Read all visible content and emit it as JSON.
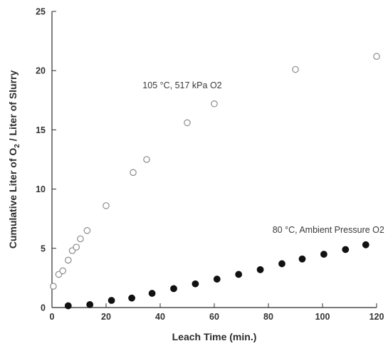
{
  "chart_data": {
    "type": "scatter",
    "title": "",
    "xlabel": "Leach Time (min.)",
    "ylabel": {
      "main": "Cumulative Liter of O",
      "sub": "2",
      "rest": " / Liter of Slurry"
    },
    "xlim": [
      0,
      120
    ],
    "ylim": [
      0,
      25
    ],
    "xticks": [
      0,
      20,
      40,
      60,
      80,
      100,
      120
    ],
    "yticks": [
      0,
      5,
      10,
      15,
      20,
      25
    ],
    "grid": false,
    "series": [
      {
        "marker": "open-circle",
        "color": "#8a8a8a",
        "x": [
          0.5,
          2.5,
          4,
          6,
          7.5,
          9,
          10.5,
          13,
          20,
          30,
          35,
          50,
          60,
          90,
          120
        ],
        "y": [
          1.8,
          2.8,
          3.1,
          4.0,
          4.8,
          5.1,
          5.8,
          6.5,
          8.6,
          11.4,
          12.5,
          15.6,
          17.2,
          20.1,
          21.2
        ]
      },
      {
        "marker": "filled-circle",
        "color": "#111111",
        "x": [
          6,
          14,
          22,
          29.5,
          37,
          45,
          53,
          61,
          69,
          77,
          85,
          92.5,
          100.5,
          108.5,
          116
        ],
        "y": [
          0.15,
          0.25,
          0.6,
          0.8,
          1.2,
          1.6,
          2.0,
          2.4,
          2.8,
          3.2,
          3.7,
          4.1,
          4.5,
          4.9,
          5.3
        ]
      }
    ],
    "annotations": [
      {
        "text": "105 °C, 517 kPa O2",
        "x": 33.5,
        "y": 18.5
      },
      {
        "text": "80 °C, Ambient Pressure O2",
        "x": 81.5,
        "y": 6.3
      }
    ]
  }
}
